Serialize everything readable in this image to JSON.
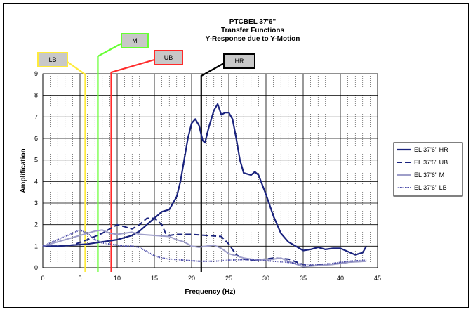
{
  "chart_data": {
    "type": "line",
    "title_lines": [
      "PTCBEL 37'6\"",
      "Transfer Functions",
      "Y-Response due to Y-Motion"
    ],
    "xlabel": "Frequency (Hz)",
    "ylabel": "Amplification",
    "xlim": [
      0,
      45
    ],
    "ylim": [
      0,
      9
    ],
    "x_ticks": [
      0,
      5,
      10,
      15,
      20,
      25,
      30,
      35,
      40,
      45
    ],
    "y_ticks": [
      0,
      1,
      2,
      3,
      4,
      5,
      6,
      7,
      8,
      9
    ],
    "grid": true,
    "legend_position": "right",
    "series": [
      {
        "name": "EL 37'6\" HR",
        "style": "solid-thick",
        "color": "#1a237e",
        "points": [
          [
            0,
            1.0
          ],
          [
            2,
            1.0
          ],
          [
            4,
            1.05
          ],
          [
            6,
            1.1
          ],
          [
            8,
            1.2
          ],
          [
            10,
            1.3
          ],
          [
            12,
            1.5
          ],
          [
            13,
            1.7
          ],
          [
            14,
            2.0
          ],
          [
            15,
            2.3
          ],
          [
            16,
            2.6
          ],
          [
            17,
            2.7
          ],
          [
            18,
            3.3
          ],
          [
            18.5,
            4.0
          ],
          [
            19,
            5.0
          ],
          [
            19.5,
            6.0
          ],
          [
            20,
            6.7
          ],
          [
            20.5,
            6.9
          ],
          [
            21,
            6.6
          ],
          [
            21.5,
            5.9
          ],
          [
            21.8,
            5.8
          ],
          [
            22.3,
            6.5
          ],
          [
            23,
            7.3
          ],
          [
            23.5,
            7.6
          ],
          [
            24,
            7.1
          ],
          [
            24.5,
            7.2
          ],
          [
            25,
            7.2
          ],
          [
            25.5,
            6.9
          ],
          [
            26,
            6.0
          ],
          [
            26.5,
            5.0
          ],
          [
            27,
            4.4
          ],
          [
            28,
            4.3
          ],
          [
            28.5,
            4.45
          ],
          [
            29,
            4.3
          ],
          [
            30,
            3.4
          ],
          [
            31,
            2.4
          ],
          [
            32,
            1.6
          ],
          [
            33,
            1.2
          ],
          [
            34,
            1.0
          ],
          [
            35,
            0.8
          ],
          [
            36,
            0.85
          ],
          [
            37,
            0.95
          ],
          [
            38,
            0.85
          ],
          [
            39,
            0.9
          ],
          [
            40,
            0.9
          ],
          [
            41,
            0.75
          ],
          [
            42,
            0.6
          ],
          [
            43,
            0.7
          ],
          [
            43.5,
            1.0
          ]
        ]
      },
      {
        "name": "EL 37'6\" UB",
        "style": "dashed",
        "color": "#1a237e",
        "points": [
          [
            0,
            1.0
          ],
          [
            2,
            1.0
          ],
          [
            4,
            1.05
          ],
          [
            6,
            1.3
          ],
          [
            8,
            1.6
          ],
          [
            9,
            1.8
          ],
          [
            10,
            2.0
          ],
          [
            11,
            1.9
          ],
          [
            12,
            1.8
          ],
          [
            13,
            2.0
          ],
          [
            14,
            2.3
          ],
          [
            15,
            2.3
          ],
          [
            16,
            2.0
          ],
          [
            16.5,
            1.6
          ],
          [
            17,
            1.5
          ],
          [
            18,
            1.55
          ],
          [
            20,
            1.55
          ],
          [
            22,
            1.5
          ],
          [
            24,
            1.45
          ],
          [
            25,
            1.1
          ],
          [
            26,
            0.6
          ],
          [
            27,
            0.4
          ],
          [
            28,
            0.35
          ],
          [
            30,
            0.4
          ],
          [
            31,
            0.45
          ],
          [
            33,
            0.4
          ],
          [
            35,
            0.15
          ],
          [
            36,
            0.1
          ],
          [
            38,
            0.15
          ],
          [
            40,
            0.2
          ],
          [
            42,
            0.3
          ],
          [
            43.5,
            0.3
          ]
        ]
      },
      {
        "name": "EL 37'6\" M",
        "style": "solid-light",
        "color": "#9e9ec9",
        "points": [
          [
            0,
            1.0
          ],
          [
            2,
            1.2
          ],
          [
            4,
            1.4
          ],
          [
            6,
            1.6
          ],
          [
            7,
            1.7
          ],
          [
            8,
            1.75
          ],
          [
            9,
            1.6
          ],
          [
            10,
            1.55
          ],
          [
            11,
            1.6
          ],
          [
            12,
            1.65
          ],
          [
            13,
            1.55
          ],
          [
            15,
            1.5
          ],
          [
            17,
            1.45
          ],
          [
            18,
            1.3
          ],
          [
            19,
            1.2
          ],
          [
            20,
            1.0
          ],
          [
            21,
            0.95
          ],
          [
            22,
            1.0
          ],
          [
            23,
            1.05
          ],
          [
            24,
            0.9
          ],
          [
            25,
            0.65
          ],
          [
            26,
            0.55
          ],
          [
            27,
            0.45
          ],
          [
            28,
            0.4
          ],
          [
            30,
            0.35
          ],
          [
            31,
            0.4
          ],
          [
            32,
            0.45
          ],
          [
            33,
            0.3
          ],
          [
            35,
            0.05
          ],
          [
            37,
            0.1
          ],
          [
            39,
            0.15
          ],
          [
            41,
            0.25
          ],
          [
            43.5,
            0.3
          ]
        ]
      },
      {
        "name": "EL 37'6\" LB",
        "style": "dotted",
        "color": "#4a4aa8",
        "points": [
          [
            0,
            1.0
          ],
          [
            2,
            1.3
          ],
          [
            4,
            1.6
          ],
          [
            5,
            1.75
          ],
          [
            6,
            1.6
          ],
          [
            7,
            1.3
          ],
          [
            8,
            1.15
          ],
          [
            9,
            1.1
          ],
          [
            10,
            1.05
          ],
          [
            11,
            1.0
          ],
          [
            12,
            1.0
          ],
          [
            13,
            0.95
          ],
          [
            14,
            0.75
          ],
          [
            15,
            0.55
          ],
          [
            16,
            0.45
          ],
          [
            17,
            0.4
          ],
          [
            18,
            0.38
          ],
          [
            19,
            0.35
          ],
          [
            21,
            0.3
          ],
          [
            23,
            0.3
          ],
          [
            25,
            0.35
          ],
          [
            27,
            0.38
          ],
          [
            29,
            0.35
          ],
          [
            31,
            0.3
          ],
          [
            33,
            0.25
          ],
          [
            35,
            0.15
          ],
          [
            37,
            0.15
          ],
          [
            39,
            0.2
          ],
          [
            41,
            0.3
          ],
          [
            43.5,
            0.35
          ]
        ]
      }
    ],
    "markers": [
      {
        "label": "LB",
        "x": 5.7,
        "color": "#ffeb3b"
      },
      {
        "label": "M",
        "x": 7.4,
        "color": "#66ff33"
      },
      {
        "label": "UB",
        "x": 9.2,
        "color": "#ff2a2a"
      },
      {
        "label": "HR",
        "x": 21.3,
        "color": "#000000"
      }
    ]
  }
}
